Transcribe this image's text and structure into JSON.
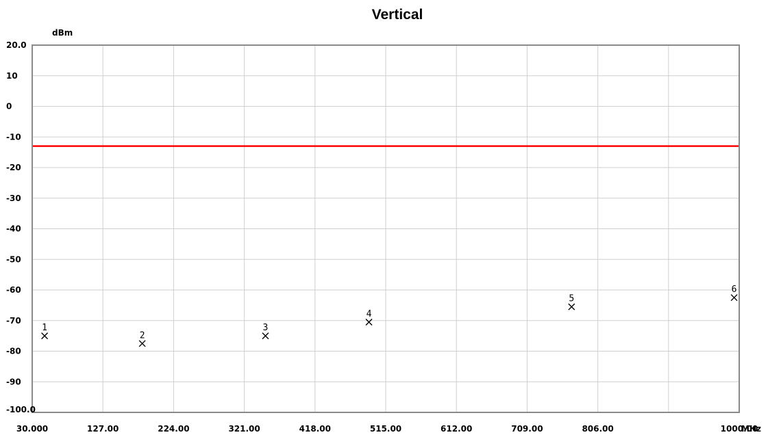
{
  "chart_data": {
    "type": "scatter",
    "title": "Vertical",
    "xunit": "MHz",
    "yunit": "dBm",
    "xlim": [
      30.0,
      1000.0
    ],
    "ylim": [
      -100.0,
      20.0
    ],
    "x_ticks": [
      30.0,
      127.0,
      224.0,
      321.0,
      418.0,
      515.0,
      612.0,
      709.0,
      806.0,
      1000.0
    ],
    "x_tick_labels": [
      "30.000",
      "127.00",
      "224.00",
      "321.00",
      "418.00",
      "515.00",
      "612.00",
      "709.00",
      "806.00",
      "1000.00"
    ],
    "y_ticks": [
      20,
      10,
      0,
      -10,
      -20,
      -30,
      -40,
      -50,
      -60,
      -70,
      -80,
      -90,
      -100
    ],
    "y_tick_labels": [
      "20.0",
      "10",
      "0",
      "-10",
      "-20",
      "-30",
      "-40",
      "-50",
      "-60",
      "-70",
      "-80",
      "-90",
      "-100.0"
    ],
    "grid": true,
    "limit_line": {
      "y": -13.0,
      "color": "#ff0000"
    },
    "points": [
      {
        "label": "1",
        "x": 47.0,
        "y": -75.0
      },
      {
        "label": "2",
        "x": 181.0,
        "y": -77.5
      },
      {
        "label": "3",
        "x": 350.0,
        "y": -75.0
      },
      {
        "label": "4",
        "x": 492.0,
        "y": -70.5
      },
      {
        "label": "5",
        "x": 770.0,
        "y": -65.5
      },
      {
        "label": "6",
        "x": 993.0,
        "y": -62.5
      }
    ],
    "marker_color": "#000000"
  }
}
